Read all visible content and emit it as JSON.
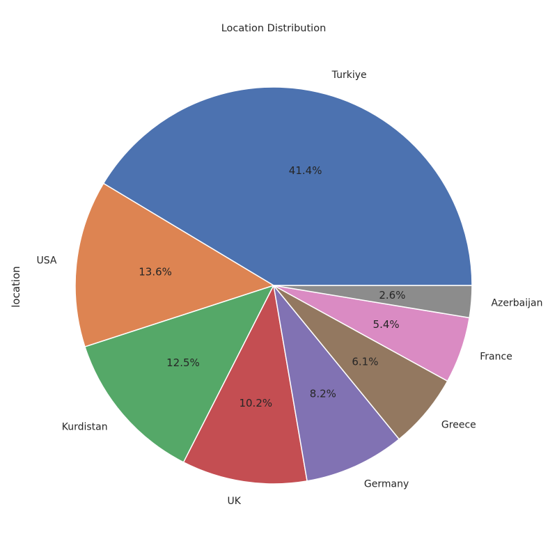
{
  "chart_data": {
    "type": "pie",
    "title": "Location Distribution",
    "ylabel": "location",
    "start_angle_deg": 0,
    "direction": "counterclockwise",
    "slices": [
      {
        "label": "Turkiye",
        "value": 41.4,
        "pct_label": "41.4%",
        "color": "#4c72b0"
      },
      {
        "label": "USA",
        "value": 13.6,
        "pct_label": "13.6%",
        "color": "#dd8452"
      },
      {
        "label": "Kurdistan",
        "value": 12.5,
        "pct_label": "12.5%",
        "color": "#55a868"
      },
      {
        "label": "UK",
        "value": 10.2,
        "pct_label": "10.2%",
        "color": "#c44e52"
      },
      {
        "label": "Germany",
        "value": 8.2,
        "pct_label": "8.2%",
        "color": "#8172b3"
      },
      {
        "label": "Greece",
        "value": 6.1,
        "pct_label": "6.1%",
        "color": "#937860"
      },
      {
        "label": "France",
        "value": 5.4,
        "pct_label": "5.4%",
        "color": "#da8bc3"
      },
      {
        "label": "Azerbaijan",
        "value": 2.6,
        "pct_label": "2.6%",
        "color": "#8c8c8c"
      }
    ]
  }
}
